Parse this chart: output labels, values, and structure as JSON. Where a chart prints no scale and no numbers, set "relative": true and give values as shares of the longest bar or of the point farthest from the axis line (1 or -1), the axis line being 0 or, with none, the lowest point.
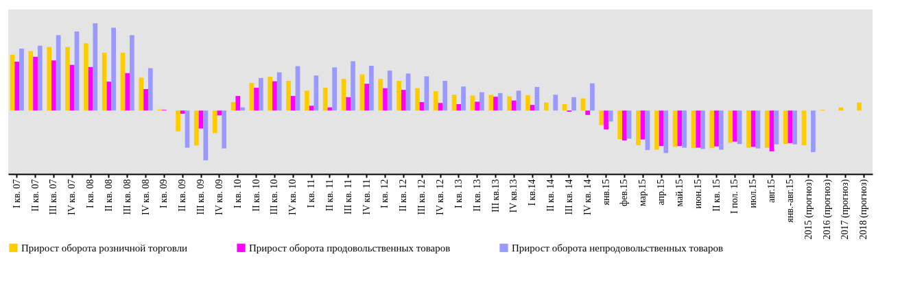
{
  "chart_data": {
    "type": "bar",
    "relative": true,
    "legend": "bottom",
    "categories": [
      "I кв. 07",
      "II кв. 07",
      "III кв. 07",
      "IV кв. 07",
      "I кв. 08",
      "II кв. 08",
      "III кв. 08",
      "IV кв. 08",
      "I кв. 09",
      "II кв. 09",
      "III кв. 09",
      "IV кв. 09",
      "I кв. 10",
      "II кв. 10",
      "III кв. 10",
      "IV кв. 10",
      "I кв. 11",
      "II кв. 11",
      "III кв. 11",
      "IV кв. 11",
      "I кв. 12",
      "II кв. 12",
      "III кв. 12",
      "IV кв. 12",
      "I кв. 13",
      "II кв. 13",
      "III кв.13",
      "IV кв.13",
      "I кв.14",
      "II кв. 14",
      "III кв. 14",
      "IV кв. 14",
      "янв.15",
      "фев.15",
      "мар.15",
      "апр.15",
      "май.15",
      "июн.15",
      "II кв. 15",
      "I пол. 15",
      "июл.15",
      "авг.15",
      "янв.-авг.15",
      "2015 (прогноз)",
      "2016 (прогноз)",
      "2017 (прогноз)",
      "2018 (прогноз)"
    ],
    "series": [
      {
        "name": "Прирост оборота розничной торговли",
        "color": "#ffcc00",
        "values": [
          0.64,
          0.682,
          0.729,
          0.729,
          0.771,
          0.663,
          0.663,
          0.378,
          0.012,
          -0.239,
          -0.401,
          -0.259,
          0.097,
          0.317,
          0.387,
          0.34,
          0.228,
          0.261,
          0.363,
          0.415,
          0.363,
          0.34,
          0.256,
          0.223,
          0.181,
          0.172,
          0.181,
          0.162,
          0.176,
          0.092,
          0.073,
          0.139,
          -0.168,
          -0.328,
          -0.398,
          -0.449,
          -0.417,
          -0.431,
          -0.431,
          -0.37,
          -0.426,
          -0.426,
          -0.384,
          -0.398,
          0.009,
          0.036,
          0.092
        ]
      },
      {
        "name": "Прирост оборота продовольственных товаров",
        "color": "#ff00ff",
        "values": [
          0.56,
          0.616,
          0.574,
          0.523,
          0.499,
          0.331,
          0.429,
          0.246,
          0.008,
          -0.037,
          -0.206,
          -0.056,
          0.167,
          0.261,
          0.335,
          0.167,
          0.055,
          0.036,
          0.153,
          0.307,
          0.256,
          0.237,
          0.097,
          0.087,
          0.073,
          0.101,
          0.158,
          0.115,
          0.064,
          null,
          -0.014,
          -0.051,
          -0.217,
          -0.343,
          -0.332,
          -0.407,
          -0.407,
          -0.426,
          -0.412,
          -0.357,
          -0.417,
          -0.468,
          -0.374,
          null,
          null,
          null,
          null
        ]
      },
      {
        "name": "Прирост оборота непродовольственных товаров",
        "color": "#9999ff",
        "values": [
          0.71,
          0.743,
          0.864,
          0.906,
          1,
          0.949,
          0.864,
          0.485,
          null,
          -0.426,
          -0.571,
          -0.435,
          0.036,
          0.373,
          0.438,
          0.509,
          0.401,
          0.495,
          0.565,
          0.513,
          0.457,
          0.424,
          0.392,
          0.34,
          0.275,
          0.209,
          0.2,
          0.228,
          0.27,
          0.181,
          0.153,
          0.312,
          -0.126,
          -0.323,
          -0.454,
          -0.487,
          -0.426,
          -0.44,
          -0.449,
          -0.384,
          -0.435,
          -0.388,
          -0.388,
          -0.477,
          null,
          null,
          null
        ]
      }
    ]
  }
}
